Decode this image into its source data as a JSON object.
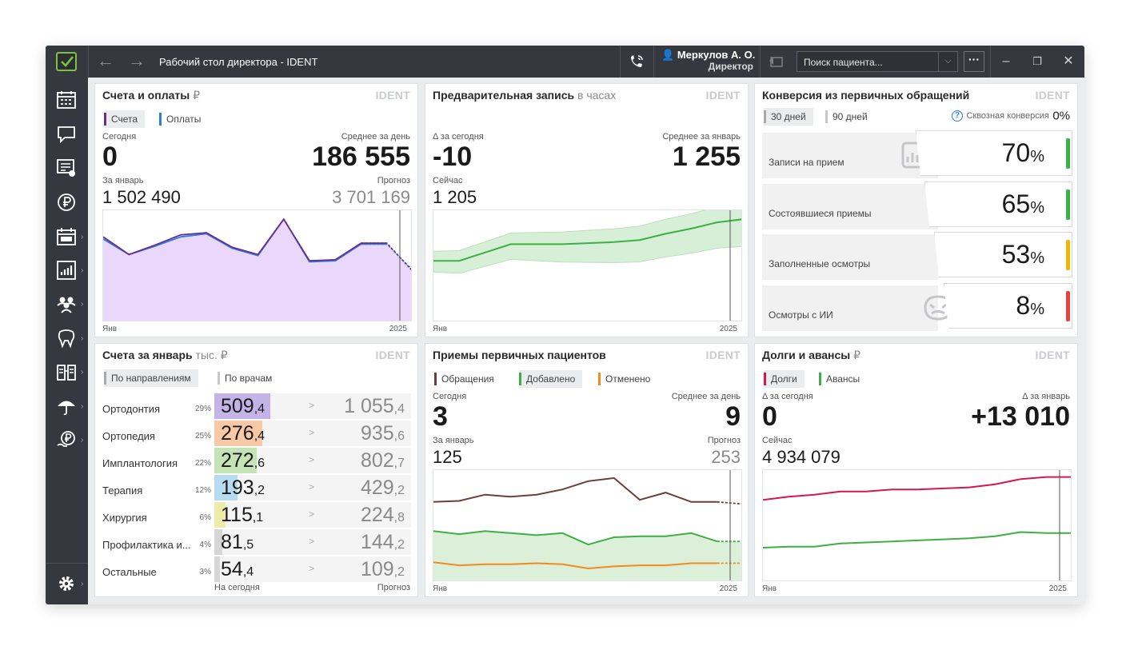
{
  "window": {
    "title": "Рабочий стол директора - IDENT",
    "user_name": "Меркулов А. О.",
    "user_role": "Директор",
    "search_placeholder": "Поиск пациента...",
    "more_label": "···"
  },
  "sidebar": {
    "items": [
      "calendar-icon",
      "chat-icon",
      "list-check-icon",
      "ruble-icon",
      "schedule-icon",
      "report-icon",
      "users-icon",
      "tooth-icon",
      "documents-icon",
      "umbrella-icon",
      "payment-icon",
      "gear-icon"
    ]
  },
  "invoices": {
    "title": "Счета и оплаты",
    "unit": "₽",
    "brand": "IDENT",
    "legend": [
      {
        "label": "Счета",
        "color": "#6a2c91",
        "selected": true
      },
      {
        "label": "Оплаты",
        "color": "#2f7fd6",
        "selected": false
      }
    ],
    "today_label": "Сегодня",
    "today_value": "0",
    "avg_label": "Среднее за день",
    "avg_value": "186 555",
    "month_label": "За январь",
    "month_value": "1 502 490",
    "forecast_label": "Прогноз",
    "forecast_value": "3 701 169",
    "x_start": "Янв",
    "x_end": "2025"
  },
  "booking": {
    "title": "Предварительная запись",
    "unit": "в часах",
    "brand": "IDENT",
    "delta_label": "Δ за сегодня",
    "delta_value": "-10",
    "avg_label": "Среднее за январь",
    "avg_value": "1 255",
    "now_label": "Сейчас",
    "now_value": "1 205",
    "x_start": "Янв",
    "x_end": "2025"
  },
  "conversion": {
    "title": "Конверсия из первичных обращений",
    "brand": "IDENT",
    "tabs": [
      {
        "label": "30 дней",
        "selected": true
      },
      {
        "label": "90 дней",
        "selected": false
      }
    ],
    "through_label": "Сквозная конверсия",
    "through_value": "0%",
    "rows": [
      {
        "label": "Записи на прием",
        "value": "70",
        "color": "#3cb043"
      },
      {
        "label": "Состоявшиеся приемы",
        "value": "65",
        "color": "#3cb043"
      },
      {
        "label": "Заполненные осмотры",
        "value": "53",
        "color": "#f5b400"
      },
      {
        "label": "Осмотры с ИИ",
        "value": "8",
        "color": "#e8413c"
      }
    ],
    "percent_sign": "%"
  },
  "by_direction": {
    "title": "Счета за январь",
    "unit": "тыс. ₽",
    "brand": "IDENT",
    "tabs": [
      {
        "label": "По направлениям",
        "selected": true
      },
      {
        "label": "По врачам",
        "selected": false
      }
    ],
    "rows": [
      {
        "name": "Ортодонтия",
        "pct": "29%",
        "share": 0.29,
        "today_int": "509",
        "today_dec": ",4",
        "fc_int": "1 055",
        "fc_dec": ",4",
        "color": "#c4b3e6"
      },
      {
        "name": "Ортопедия",
        "pct": "25%",
        "share": 0.25,
        "today_int": "276",
        "today_dec": ",4",
        "fc_int": "935",
        "fc_dec": ",6",
        "color": "#f7c9a6"
      },
      {
        "name": "Имплантология",
        "pct": "22%",
        "share": 0.22,
        "today_int": "272",
        "today_dec": ",6",
        "fc_int": "802",
        "fc_dec": ",7",
        "color": "#c5e4b5"
      },
      {
        "name": "Терапия",
        "pct": "12%",
        "share": 0.12,
        "today_int": "193",
        "today_dec": ",2",
        "fc_int": "429",
        "fc_dec": ",2",
        "color": "#b7dcf2"
      },
      {
        "name": "Хирургия",
        "pct": "6%",
        "share": 0.06,
        "today_int": "115",
        "today_dec": ",1",
        "fc_int": "224",
        "fc_dec": ",8",
        "color": "#ecebaa"
      },
      {
        "name": "Профилактика и...",
        "pct": "4%",
        "share": 0.04,
        "today_int": "81",
        "today_dec": ",5",
        "fc_int": "144",
        "fc_dec": ",2",
        "color": "#d6d6d6"
      },
      {
        "name": "Остальные",
        "pct": "3%",
        "share": 0.03,
        "today_int": "54",
        "today_dec": ",4",
        "fc_int": "109",
        "fc_dec": ",2",
        "color": "#d6d6d6"
      }
    ],
    "arrow": ">",
    "foot_today": "На сегодня",
    "foot_forecast": "Прогноз"
  },
  "primary_patients": {
    "title": "Приемы первичных пациентов",
    "brand": "IDENT",
    "legend": [
      {
        "label": "Обращения",
        "color": "#6b3f38",
        "selected": false
      },
      {
        "label": "Добавлено",
        "color": "#3cb043",
        "selected": true
      },
      {
        "label": "Отменено",
        "color": "#f08c1e",
        "selected": false
      }
    ],
    "today_label": "Сегодня",
    "today_value": "3",
    "avg_label": "Среднее за день",
    "avg_value": "9",
    "month_label": "За январь",
    "month_value": "125",
    "forecast_label": "Прогноз",
    "forecast_value": "253",
    "x_start": "Янв",
    "x_end": "2025"
  },
  "debts": {
    "title": "Долги и авансы",
    "unit": "₽",
    "brand": "IDENT",
    "legend": [
      {
        "label": "Долги",
        "color": "#d6174f",
        "selected": true
      },
      {
        "label": "Авансы",
        "color": "#3cb043",
        "selected": false
      }
    ],
    "delta_label": "Δ за сегодня",
    "delta_value": "0",
    "month_label": "Δ за январь",
    "month_value": "+13 010",
    "now_label": "Сейчас",
    "now_value": "4 934 079",
    "x_start": "Янв",
    "x_end": "2025"
  },
  "chart_data": [
    {
      "type": "area",
      "title": "Счета и оплаты",
      "series": [
        {
          "name": "Счета",
          "values": [
            0.79,
            0.62,
            0.71,
            0.81,
            0.83,
            0.69,
            0.62,
            0.96,
            0.56,
            0.57,
            0.73,
            0.73,
            0.46
          ]
        },
        {
          "name": "Оплаты",
          "values": [
            0.77,
            0.62,
            0.7,
            0.79,
            0.82,
            0.68,
            0.61,
            0.96,
            0.55,
            0.56,
            0.72,
            0.72,
            0.47
          ]
        }
      ]
    },
    {
      "type": "line",
      "title": "Предварительная запись",
      "series": [
        {
          "name": "Предварительная запись",
          "values": [
            0.56,
            0.56,
            0.64,
            0.72,
            0.72,
            0.72,
            0.73,
            0.74,
            0.76,
            0.82,
            0.87,
            0.93,
            0.96
          ]
        }
      ]
    },
    {
      "type": "line",
      "title": "Приемы первичных пациентов",
      "series": [
        {
          "name": "Обращения",
          "values": [
            0.74,
            0.75,
            0.81,
            0.79,
            0.81,
            0.86,
            0.94,
            0.97,
            0.76,
            0.83,
            0.74,
            0.74,
            0.72
          ]
        },
        {
          "name": "Добавлено",
          "values": [
            0.46,
            0.43,
            0.46,
            0.44,
            0.42,
            0.44,
            0.33,
            0.4,
            0.41,
            0.41,
            0.44,
            0.36,
            0.36
          ]
        },
        {
          "name": "Отменено",
          "values": [
            0.16,
            0.13,
            0.14,
            0.14,
            0.15,
            0.14,
            0.1,
            0.12,
            0.13,
            0.13,
            0.15,
            0.15,
            0.15
          ]
        }
      ]
    },
    {
      "type": "line",
      "title": "Долги и авансы",
      "series": [
        {
          "name": "Долги",
          "values": [
            0.76,
            0.79,
            0.81,
            0.84,
            0.84,
            0.86,
            0.86,
            0.87,
            0.88,
            0.91,
            0.96,
            0.98,
            0.98
          ]
        },
        {
          "name": "Авансы",
          "values": [
            0.3,
            0.31,
            0.31,
            0.34,
            0.35,
            0.36,
            0.37,
            0.38,
            0.39,
            0.41,
            0.45,
            0.44,
            0.44
          ]
        }
      ]
    }
  ]
}
